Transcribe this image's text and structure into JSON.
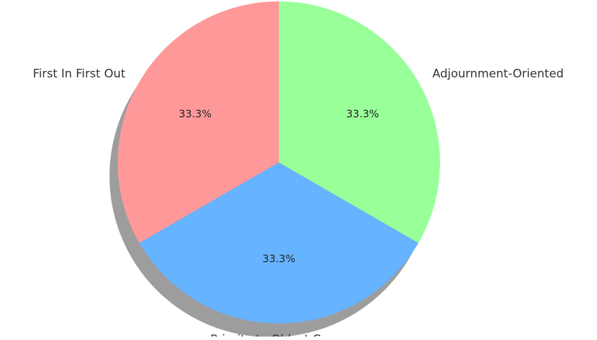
{
  "chart_data": {
    "type": "pie",
    "title": "",
    "shadow": true,
    "slices": [
      {
        "label": "First In First Out",
        "value": 33.3,
        "pct_label": "33.3%",
        "color": "#ff9999"
      },
      {
        "label": "Priority to Oldest Cases",
        "value": 33.3,
        "pct_label": "33.3%",
        "color": "#66b3ff"
      },
      {
        "label": "Adjournment-Oriented",
        "value": 33.3,
        "pct_label": "33.3%",
        "color": "#99ff99"
      }
    ]
  }
}
